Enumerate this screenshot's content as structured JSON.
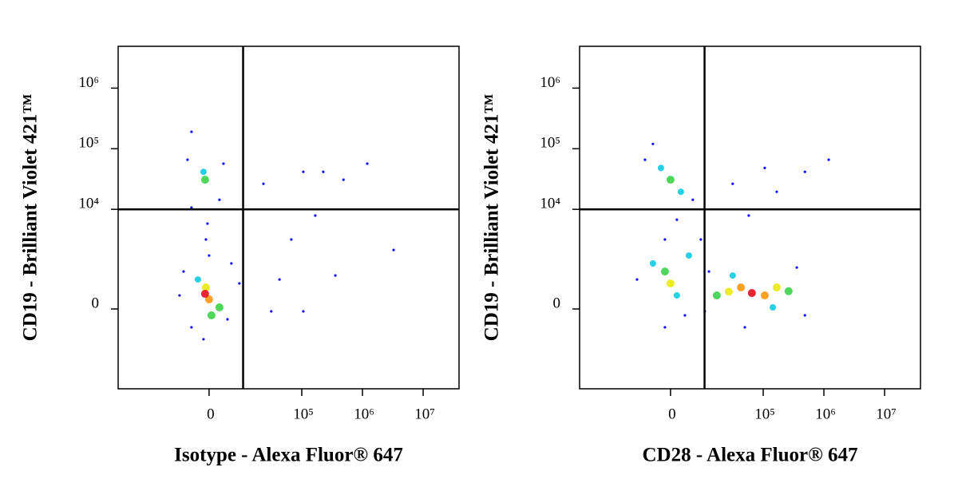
{
  "chart_data": [
    {
      "type": "scatter",
      "xlabel": "Isotype - Alexa Fluor® 647",
      "ylabel": "CD19 - Brilliant Violet 421™",
      "xscale": "asinh",
      "yscale": "asinh",
      "xlim": [
        -93500,
        39000000
      ],
      "ylim": [
        -4700,
        4900000
      ],
      "xticks": [
        0,
        {
          "value": 100000,
          "label": "10⁵"
        },
        {
          "value": 1000000,
          "label": "10⁶"
        },
        {
          "value": 10000000,
          "label": "10⁷"
        }
      ],
      "yticks": [
        0,
        {
          "value": 10000,
          "label": "10⁴"
        },
        {
          "value": 100000,
          "label": "10⁵"
        },
        {
          "value": 1000000,
          "label": "10⁶"
        }
      ],
      "gates": {
        "x": 10000,
        "y": 10000
      },
      "series": [
        {
          "color": "#1010ff",
          "x": [
            -6700,
            5650,
            -4270,
            4490,
            0,
            -8150,
            8450,
            -1270,
            -5430,
            2400,
            -4270,
            3410,
            -360,
            -720,
            -4270,
            23000,
            106000,
            226000,
            487000,
            1200000,
            42800,
            106000,
            358000,
            3260000,
            167000,
            67200,
            31200
          ],
          "y": [
            886,
            1240,
            -343,
            -183,
            1700,
            244,
            513,
            -645,
            65800,
            14400,
            10700,
            56700,
            5810,
            3160,
            190000,
            26400,
            41600,
            41600,
            30800,
            56700,
            622,
            -41,
            745,
            2110,
            7900,
            3160,
            -41
          ]
        },
        {
          "color": "#00c8e0",
          "x": [
            -1270,
            -2600
          ],
          "y": [
            41600,
            622
          ]
        },
        {
          "color": "#30d040",
          "x": [
            -905,
            2400,
            540
          ],
          "y": [
            30800,
            27,
            -111
          ]
        },
        {
          "color": "#e8e800",
          "x": [
            -720
          ],
          "y": [
            414
          ]
        },
        {
          "color": "#ff9000",
          "x": [
            0
          ],
          "y": [
            169
          ]
        },
        {
          "color": "#e80010",
          "x": [
            -905
          ],
          "y": [
            276
          ]
        }
      ]
    },
    {
      "type": "scatter",
      "xlabel": "CD28 - Alexa Fluor® 647",
      "ylabel": "CD19 - Brilliant Violet 421™",
      "xscale": "asinh",
      "yscale": "asinh",
      "xlim": [
        -93500,
        39000000
      ],
      "ylim": [
        -4700,
        4900000
      ],
      "xticks": [
        0,
        {
          "value": 100000,
          "label": "10⁵"
        },
        {
          "value": 1000000,
          "label": "10⁶"
        },
        {
          "value": 10000000,
          "label": "10⁷"
        }
      ],
      "yticks": [
        0,
        {
          "value": 10000,
          "label": "10⁴"
        },
        {
          "value": 100000,
          "label": "10⁵"
        },
        {
          "value": 1000000,
          "label": "10⁶"
        }
      ],
      "gates": {
        "x": 10000,
        "y": 10000
      },
      "series": [
        {
          "color": "#1010ff",
          "x": [
            -6700,
            5650,
            -4270,
            1450,
            -1270,
            -9760,
            8450,
            -1270,
            3410,
            12100,
            358000,
            487000,
            49700,
            10100,
            31200,
            106000,
            167000,
            487000,
            1200000,
            57700
          ],
          "y": [
            65800,
            14400,
            120000,
            6720,
            3160,
            622,
            3160,
            -343,
            -111,
            886,
            1050,
            -111,
            -343,
            -41,
            26400,
            48200,
            19500,
            41600,
            65800,
            7900
          ]
        },
        {
          "color": "#00c8e0",
          "x": [
            -2210,
            2400,
            1450,
            -4270,
            4490,
            31200,
            144000
          ],
          "y": [
            48200,
            19500,
            244,
            1240,
            1700,
            745,
            27
          ]
        },
        {
          "color": "#30d040",
          "x": [
            0,
            -1270,
            16700,
            262000
          ],
          "y": [
            30800,
            886,
            244,
            330
          ]
        },
        {
          "color": "#e8e800",
          "x": [
            0,
            26800,
            167000
          ],
          "y": [
            513,
            320,
            414
          ]
        },
        {
          "color": "#ff9000",
          "x": [
            42800,
            106000
          ],
          "y": [
            414,
            244
          ]
        },
        {
          "color": "#e80010",
          "x": [
            65000
          ],
          "y": [
            292
          ]
        }
      ]
    }
  ]
}
